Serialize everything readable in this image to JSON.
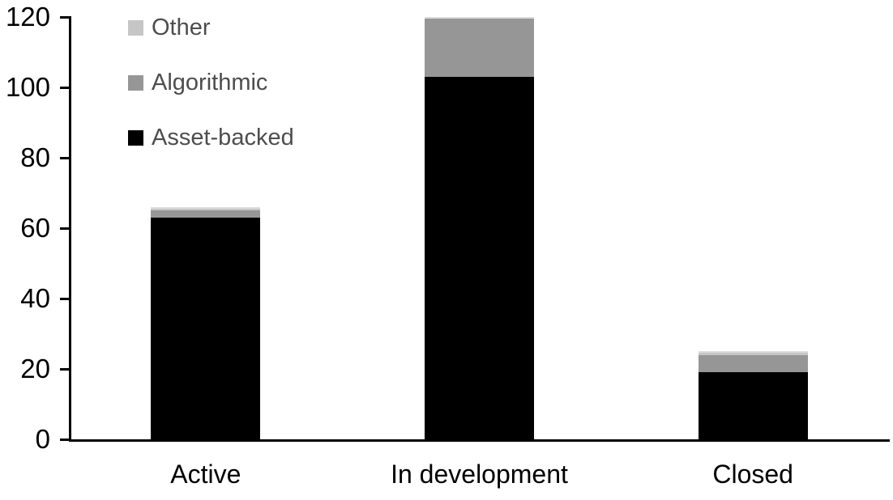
{
  "chart_data": {
    "type": "bar",
    "stacked": true,
    "title": "",
    "xlabel": "",
    "ylabel": "",
    "categories": [
      "Active",
      "In development",
      "Closed"
    ],
    "series": [
      {
        "name": "Asset-backed",
        "color": "#000000",
        "values": [
          63,
          103,
          19
        ]
      },
      {
        "name": "Algorithmic",
        "color": "#969696",
        "values": [
          2,
          17,
          5
        ]
      },
      {
        "name": "Other",
        "color": "#c6c6c6",
        "values": [
          1,
          0,
          1
        ]
      }
    ],
    "totals": [
      66,
      120,
      25
    ],
    "legend": [
      {
        "label": "Other",
        "color": "#c6c6c6"
      },
      {
        "label": "Algorithmic",
        "color": "#969696"
      },
      {
        "label": "Asset-backed",
        "color": "#000000"
      }
    ],
    "legend_position": "top-left",
    "yticks": [
      0,
      20,
      40,
      60,
      80,
      100,
      120
    ],
    "ylim": [
      0,
      120
    ],
    "grid": false
  },
  "style": {
    "background": "#ffffff",
    "axis_color": "#000000",
    "tick_label_color": "#000000",
    "x_label_color": "#000000",
    "legend_text_color": "#4d4d4d",
    "bar_top_highlight": "#dcdcdc"
  }
}
